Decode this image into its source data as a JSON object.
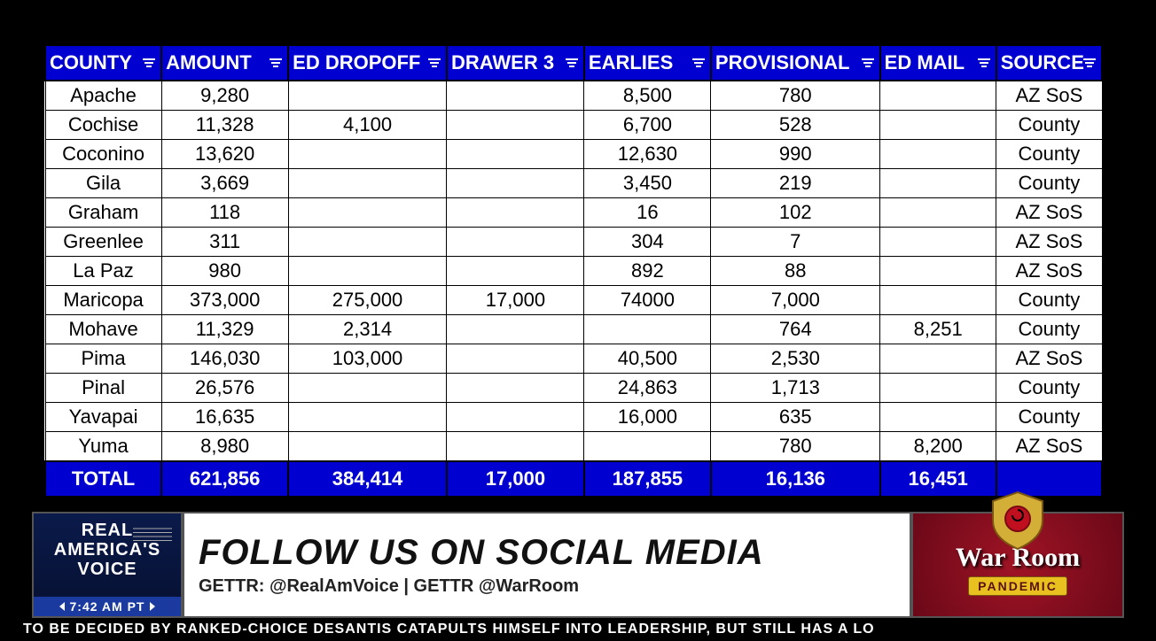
{
  "table": {
    "columns": [
      "COUNTY",
      "AMOUNT",
      "ED DROPOFF",
      "DRAWER 3",
      "EARLIES",
      "PROVISIONAL",
      "ED MAIL",
      "SOURCE"
    ],
    "rows": [
      {
        "county": "Apache",
        "amount": "9,280",
        "dropoff": "",
        "drawer": "",
        "earlies": "8,500",
        "prov": "780",
        "edmail": "",
        "source": "AZ SoS"
      },
      {
        "county": "Cochise",
        "amount": "11,328",
        "dropoff": "4,100",
        "drawer": "",
        "earlies": "6,700",
        "prov": "528",
        "edmail": "",
        "source": "County"
      },
      {
        "county": "Coconino",
        "amount": "13,620",
        "dropoff": "",
        "drawer": "",
        "earlies": "12,630",
        "prov": "990",
        "edmail": "",
        "source": "County"
      },
      {
        "county": "Gila",
        "amount": "3,669",
        "dropoff": "",
        "drawer": "",
        "earlies": "3,450",
        "prov": "219",
        "edmail": "",
        "source": "County"
      },
      {
        "county": "Graham",
        "amount": "118",
        "dropoff": "",
        "drawer": "",
        "earlies": "16",
        "prov": "102",
        "edmail": "",
        "source": "AZ SoS"
      },
      {
        "county": "Greenlee",
        "amount": "311",
        "dropoff": "",
        "drawer": "",
        "earlies": "304",
        "prov": "7",
        "edmail": "",
        "source": "AZ SoS"
      },
      {
        "county": "La Paz",
        "amount": "980",
        "dropoff": "",
        "drawer": "",
        "earlies": "892",
        "prov": "88",
        "edmail": "",
        "source": "AZ SoS"
      },
      {
        "county": "Maricopa",
        "amount": "373,000",
        "dropoff": "275,000",
        "drawer": "17,000",
        "earlies": "74000",
        "prov": "7,000",
        "edmail": "",
        "source": "County"
      },
      {
        "county": "Mohave",
        "amount": "11,329",
        "dropoff": "2,314",
        "drawer": "",
        "earlies": "",
        "prov": "764",
        "edmail": "8,251",
        "source": "County"
      },
      {
        "county": "Pima",
        "amount": "146,030",
        "dropoff": "103,000",
        "drawer": "",
        "earlies": "40,500",
        "prov": "2,530",
        "edmail": "",
        "source": "AZ SoS"
      },
      {
        "county": "Pinal",
        "amount": "26,576",
        "dropoff": "",
        "drawer": "",
        "earlies": "24,863",
        "prov": "1,713",
        "edmail": "",
        "source": "County"
      },
      {
        "county": "Yavapai",
        "amount": "16,635",
        "dropoff": "",
        "drawer": "",
        "earlies": "16,000",
        "prov": "635",
        "edmail": "",
        "source": "County"
      },
      {
        "county": "Yuma",
        "amount": "8,980",
        "dropoff": "",
        "drawer": "",
        "earlies": "",
        "prov": "780",
        "edmail": "8,200",
        "source": "AZ SoS"
      }
    ],
    "totals": {
      "county": "TOTAL",
      "amount": "621,856",
      "dropoff": "384,414",
      "drawer": "17,000",
      "earlies": "187,855",
      "prov": "16,136",
      "edmail": "16,451",
      "source": ""
    },
    "header_bg": "#0000d0",
    "header_fg": "#ffffff",
    "cell_bg": "#ffffff",
    "cell_fg": "#000000",
    "border_color": "#000000"
  },
  "rav": {
    "line1": "REAL",
    "line2": "AMERICA'S",
    "line3": "VOICE",
    "time": "7:42 AM PT"
  },
  "headline": {
    "main": "FOLLOW US ON SOCIAL MEDIA",
    "sub": "GETTR: @RealAmVoice  |  GETTR @WarRoom"
  },
  "warroom": {
    "title": "War Room",
    "sub": "PANDEMIC"
  },
  "ticker": "TO BE DECIDED BY RANKED-CHOICE        DESANTIS CATAPULTS HIMSELF INTO LEADERSHIP, BUT STILL HAS A LO"
}
